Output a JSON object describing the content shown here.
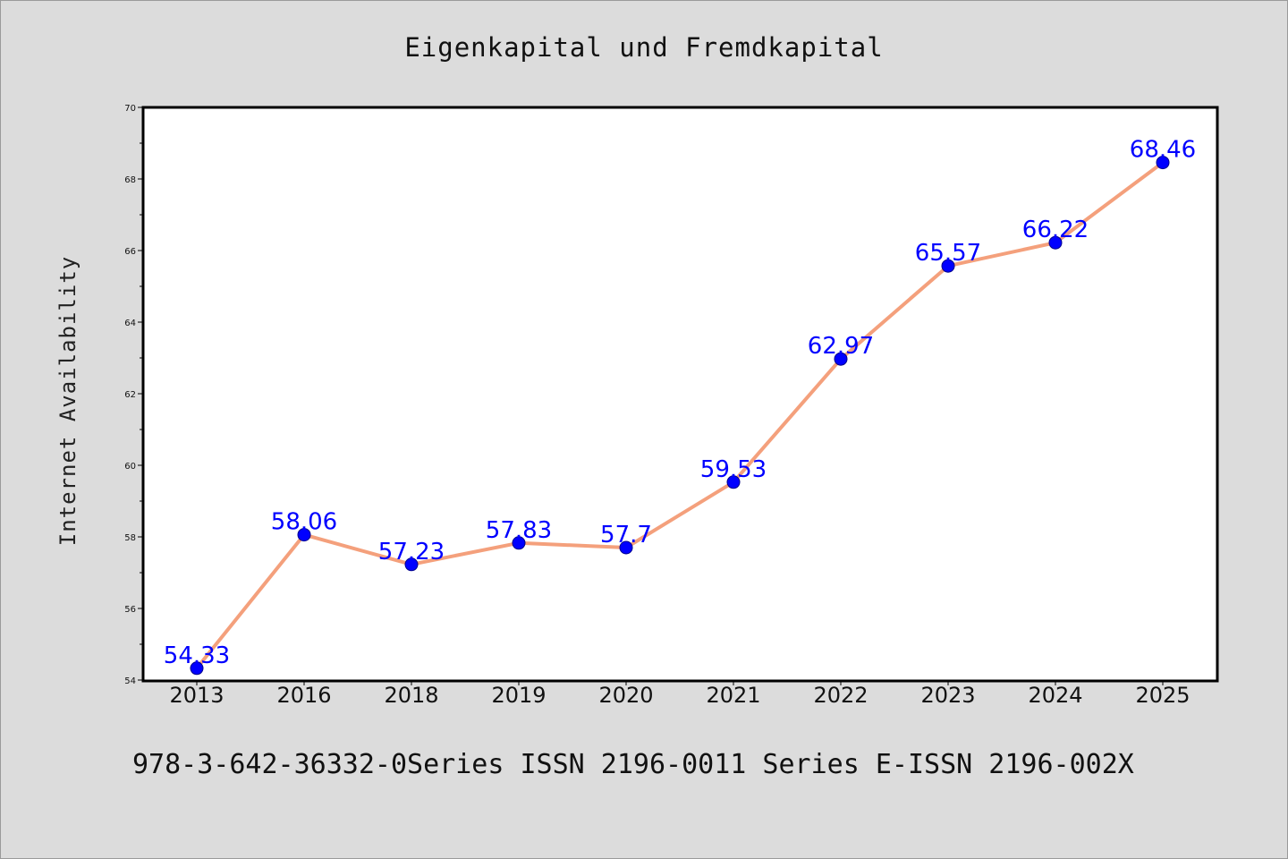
{
  "chart_data": {
    "type": "line",
    "title": "Eigenkapital und Fremdkapital",
    "xlabel": "",
    "ylabel": "Internet Availability",
    "footer": "978-3-642-36332-0Series ISSN 2196-0011 Series E-ISSN 2196-002X",
    "categories": [
      "2013",
      "2016",
      "2018",
      "2019",
      "2020",
      "2021",
      "2022",
      "2023",
      "2024",
      "2025"
    ],
    "series": [
      {
        "values": [
          54.33,
          58.06,
          57.23,
          57.83,
          57.7,
          59.53,
          62.97,
          65.57,
          66.22,
          68.46
        ],
        "labels": [
          "54.33",
          "58.06",
          "57.23",
          "57.83",
          "57.7",
          "59.53",
          "62.97",
          "65.57",
          "66.22",
          "68.46"
        ]
      }
    ],
    "ylim": [
      54,
      70
    ],
    "yticks": [
      54,
      56,
      58,
      60,
      62,
      64,
      66,
      68,
      70
    ],
    "ytick_labels": [
      "54",
      "56",
      "58",
      "60",
      "62",
      "64",
      "66",
      "68",
      "70"
    ],
    "grid": false,
    "legend": "none",
    "colors": {
      "line": "#f4a07c",
      "marker": "#0000ff",
      "data_label": "#0000ff",
      "background": "#dcdcdc",
      "plot_background": "#ffffff"
    }
  }
}
